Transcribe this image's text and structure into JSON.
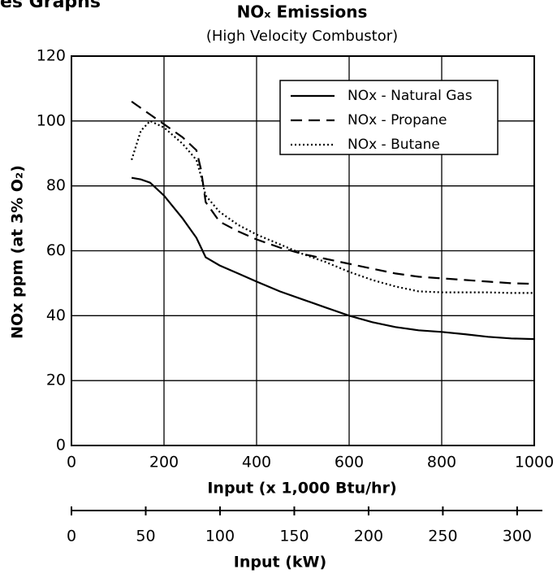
{
  "header": "es Graphs",
  "chart_data": {
    "type": "line",
    "title": "NOₓ Emissions",
    "subtitle": "(High Velocity Combustor)",
    "x_label": "Input (x 1,000 Btu/hr)",
    "y_label": "NOx ppm (at 3% O₂)",
    "x": [
      130,
      150,
      170,
      200,
      240,
      270,
      280,
      290,
      320,
      360,
      400,
      450,
      500,
      550,
      600,
      650,
      700,
      750,
      800,
      850,
      900,
      950,
      1000
    ],
    "series": [
      {
        "name": "NOx - Natural Gas",
        "color": "#000000",
        "style": "solid",
        "values": [
          82.5,
          82,
          81,
          77,
          70,
          64,
          61,
          58,
          55.5,
          53,
          50.5,
          47.5,
          45,
          42.5,
          40,
          38,
          36.5,
          35.5,
          35,
          34.3,
          33.5,
          33,
          32.8
        ]
      },
      {
        "name": "NOx - Propane",
        "color": "#000000",
        "style": "dashed",
        "values": [
          106,
          104,
          102,
          99,
          95,
          91,
          85,
          75,
          69,
          66,
          63.5,
          61,
          59,
          57.5,
          56,
          54.5,
          53,
          52,
          51.5,
          51,
          50.5,
          50,
          49.8
        ]
      },
      {
        "name": "NOx - Butane",
        "color": "#000000",
        "style": "dotted",
        "values": [
          88,
          97,
          100,
          98,
          93,
          88,
          83,
          77,
          72,
          68,
          65,
          62,
          59,
          56.5,
          53.5,
          51,
          49,
          47.5,
          47.2,
          47.2,
          47.2,
          47,
          47
        ]
      }
    ],
    "xlim": [
      0,
      1000
    ],
    "xticks": [
      0,
      200,
      400,
      600,
      800,
      1000
    ],
    "ylim": [
      0,
      120
    ],
    "yticks": [
      0,
      20,
      40,
      60,
      80,
      100,
      120
    ],
    "grid": true,
    "x2_label": "Input (kW)",
    "x2lim": [
      0,
      317
    ],
    "x2ticks": [
      0,
      50,
      100,
      150,
      200,
      250,
      300
    ],
    "legend": "upper right"
  }
}
